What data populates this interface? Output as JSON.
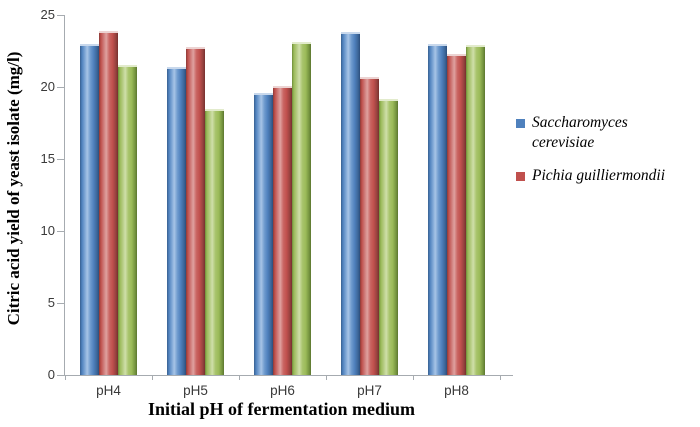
{
  "chart_data": {
    "type": "bar",
    "title": "",
    "xlabel": "Initial pH of fermentation medium",
    "ylabel": "Citric acid yield of yeast isolate (mg/l)",
    "categories": [
      "pH4",
      "pH5",
      "pH6",
      "pH7",
      "pH8"
    ],
    "series": [
      {
        "name": "Saccharomyces cerevisiae",
        "color": "#4f81bd",
        "values": [
          23.0,
          21.4,
          19.6,
          23.8,
          23.0
        ]
      },
      {
        "name": "Pichia guilliermondii",
        "color": "#c0504d",
        "values": [
          23.9,
          22.8,
          20.1,
          20.7,
          22.3
        ]
      },
      {
        "name": "",
        "color": "#9bbb59",
        "values": [
          21.5,
          18.5,
          23.1,
          19.2,
          22.9
        ]
      }
    ],
    "ylim": [
      0,
      25
    ],
    "yticks": [
      0,
      5,
      10,
      15,
      20,
      25
    ],
    "grid": false,
    "legend": {
      "position": "right",
      "entries": [
        {
          "label": "Saccharomyces cerevisiae",
          "label_lines": [
            "Saccharomyces",
            "cerevisiae"
          ],
          "color": "#4f81bd"
        },
        {
          "label": "Pichia guilliermondii",
          "label_lines": [
            "Pichia guilliermondii"
          ],
          "color": "#c0504d"
        }
      ]
    }
  }
}
